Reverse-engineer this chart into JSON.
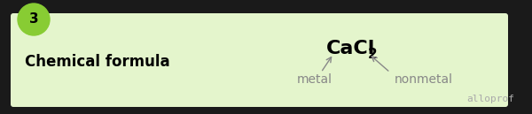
{
  "bg_color": "#1a1a1a",
  "box_color": "#e4f5cc",
  "circle_color": "#88cc33",
  "step_number": "3",
  "step_number_color": "#000000",
  "title": "Chemical formula",
  "title_color": "#000000",
  "title_fontsize": 12,
  "formula_color": "#000000",
  "formula_fontsize": 16,
  "metal_label": "metal",
  "nonmetal_label": "nonmetal",
  "label_color": "#888888",
  "label_fontsize": 10,
  "arrow_color": "#888888",
  "alloprof_text": "alloprof",
  "alloprof_color": "#aaaaaa",
  "alloprof_fontsize": 8
}
